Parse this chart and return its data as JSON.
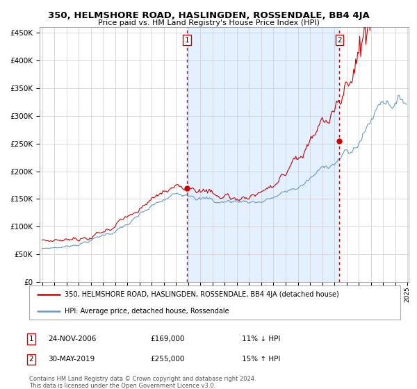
{
  "title": "350, HELMSHORE ROAD, HASLINGDEN, ROSSENDALE, BB4 4JA",
  "subtitle": "Price paid vs. HM Land Registry's House Price Index (HPI)",
  "red_label": "350, HELMSHORE ROAD, HASLINGDEN, ROSSENDALE, BB4 4JA (detached house)",
  "blue_label": "HPI: Average price, detached house, Rossendale",
  "annotation1_date": "24-NOV-2006",
  "annotation1_price": "£169,000",
  "annotation1_pct": "11% ↓ HPI",
  "annotation2_date": "30-MAY-2019",
  "annotation2_price": "£255,000",
  "annotation2_pct": "15% ↑ HPI",
  "footnote1": "Contains HM Land Registry data © Crown copyright and database right 2024.",
  "footnote2": "This data is licensed under the Open Government Licence v3.0.",
  "red_color": "#cc0000",
  "blue_color": "#6699cc",
  "bg_shaded": "#ddeeff",
  "vline_color": "#cc0000",
  "ylim": [
    0,
    460000
  ],
  "yticks": [
    0,
    50000,
    100000,
    150000,
    200000,
    250000,
    300000,
    350000,
    400000,
    450000
  ],
  "ytick_labels": [
    "£0",
    "£50K",
    "£100K",
    "£150K",
    "£200K",
    "£250K",
    "£300K",
    "£350K",
    "£400K",
    "£450K"
  ],
  "start_year": 1995,
  "end_year": 2025,
  "sale1_year": 2006.92,
  "sale1_value": 169000,
  "sale2_year": 2019.42,
  "sale2_value": 255000
}
